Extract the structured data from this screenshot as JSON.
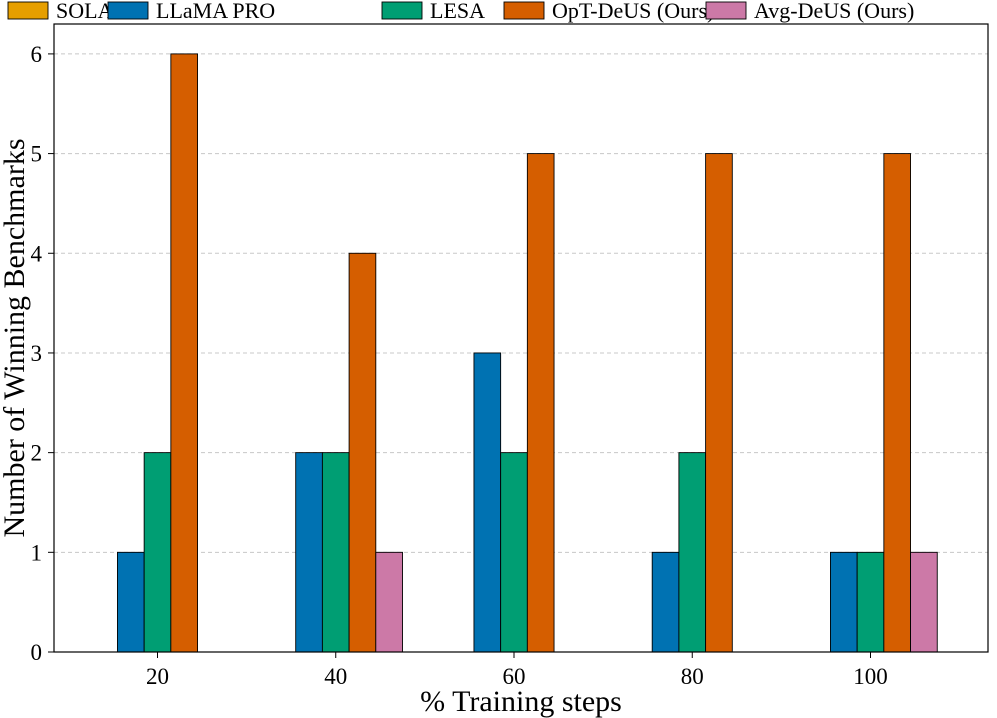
{
  "chart_data": {
    "type": "bar",
    "categories": [
      "20",
      "40",
      "60",
      "80",
      "100"
    ],
    "series": [
      {
        "name": "SOLAR",
        "color": "#E69F00",
        "values": [
          0,
          0,
          0,
          0,
          0
        ]
      },
      {
        "name": "LLaMA PRO",
        "color": "#0072B2",
        "values": [
          1,
          2,
          3,
          1,
          1
        ]
      },
      {
        "name": "LESA",
        "color": "#009E73",
        "values": [
          2,
          2,
          2,
          2,
          1
        ]
      },
      {
        "name": "OpT-DeUS (Ours)",
        "color": "#D55E00",
        "values": [
          6,
          4,
          5,
          5,
          5
        ]
      },
      {
        "name": "Avg-DeUS (Ours)",
        "color": "#CC79A7",
        "values": [
          0,
          1,
          0,
          0,
          1
        ]
      }
    ],
    "xlabel": "% Training steps",
    "ylabel": "Number of Winning Benchmarks",
    "ylim": [
      0,
      6.3
    ],
    "yticks": [
      "0",
      "1",
      "2",
      "3",
      "4",
      "5",
      "6"
    ],
    "grid": "y-dashed",
    "legend": "top"
  }
}
